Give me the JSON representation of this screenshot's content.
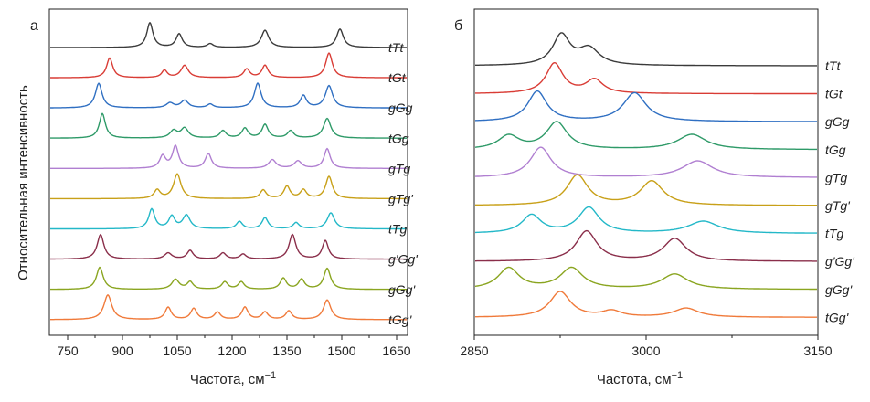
{
  "figure": {
    "ylabel": "Относительная интенсивность"
  },
  "chart_data": [
    {
      "type": "line",
      "panel": "а",
      "xlabel": "Частота, см",
      "xlabel_sup": "−1",
      "xlim": [
        700,
        1680
      ],
      "xticks": [
        750,
        900,
        1050,
        1200,
        1350,
        1500,
        1650
      ],
      "yticks": false,
      "series": [
        {
          "name": "tTt",
          "color": "#3a3a3a",
          "peaks": [
            [
              975,
              1.0,
              10
            ],
            [
              1055,
              0.55,
              10
            ],
            [
              1140,
              0.15,
              10
            ],
            [
              1290,
              0.7,
              12
            ],
            [
              1495,
              0.75,
              11
            ]
          ]
        },
        {
          "name": "tGt",
          "color": "#d93c35",
          "peaks": [
            [
              865,
              0.8,
              10
            ],
            [
              1015,
              0.3,
              9
            ],
            [
              1070,
              0.5,
              12
            ],
            [
              1240,
              0.35,
              10
            ],
            [
              1290,
              0.5,
              10
            ],
            [
              1465,
              1.0,
              11
            ]
          ]
        },
        {
          "name": "gGg",
          "color": "#2f6fc2",
          "peaks": [
            [
              835,
              1.0,
              11
            ],
            [
              1030,
              0.2,
              12
            ],
            [
              1070,
              0.3,
              12
            ],
            [
              1140,
              0.15,
              10
            ],
            [
              1270,
              1.0,
              11
            ],
            [
              1395,
              0.5,
              10
            ],
            [
              1465,
              0.9,
              12
            ]
          ]
        },
        {
          "name": "tGg",
          "color": "#2e9a68",
          "peaks": [
            [
              845,
              1.0,
              10
            ],
            [
              1040,
              0.3,
              12
            ],
            [
              1070,
              0.4,
              12
            ],
            [
              1175,
              0.3,
              10
            ],
            [
              1235,
              0.4,
              10
            ],
            [
              1290,
              0.55,
              10
            ],
            [
              1360,
              0.3,
              10
            ],
            [
              1460,
              0.8,
              12
            ]
          ]
        },
        {
          "name": "gTg",
          "color": "#b07fd1",
          "peaks": [
            [
              1010,
              0.5,
              10
            ],
            [
              1045,
              0.9,
              10
            ],
            [
              1135,
              0.6,
              10
            ],
            [
              1310,
              0.35,
              12
            ],
            [
              1380,
              0.3,
              12
            ],
            [
              1460,
              0.8,
              10
            ]
          ]
        },
        {
          "name": "gTg'",
          "color": "#c8a018",
          "peaks": [
            [
              995,
              0.35,
              10
            ],
            [
              1050,
              1.0,
              12
            ],
            [
              1285,
              0.35,
              10
            ],
            [
              1350,
              0.5,
              10
            ],
            [
              1395,
              0.35,
              10
            ],
            [
              1465,
              0.9,
              11
            ]
          ]
        },
        {
          "name": "tTg",
          "color": "#23b8c8",
          "peaks": [
            [
              980,
              0.8,
              10
            ],
            [
              1035,
              0.5,
              10
            ],
            [
              1075,
              0.55,
              12
            ],
            [
              1220,
              0.3,
              10
            ],
            [
              1290,
              0.45,
              10
            ],
            [
              1375,
              0.25,
              10
            ],
            [
              1470,
              0.65,
              12
            ]
          ]
        },
        {
          "name": "g'Gg'",
          "color": "#8a2e4a",
          "peaks": [
            [
              840,
              1.0,
              11
            ],
            [
              1025,
              0.25,
              12
            ],
            [
              1085,
              0.35,
              10
            ],
            [
              1175,
              0.25,
              10
            ],
            [
              1230,
              0.2,
              10
            ],
            [
              1365,
              1.0,
              11
            ],
            [
              1455,
              0.75,
              10
            ]
          ]
        },
        {
          "name": "gGg'",
          "color": "#8aa520",
          "peaks": [
            [
              838,
              0.9,
              11
            ],
            [
              1045,
              0.4,
              12
            ],
            [
              1085,
              0.3,
              10
            ],
            [
              1180,
              0.3,
              10
            ],
            [
              1225,
              0.3,
              10
            ],
            [
              1340,
              0.45,
              10
            ],
            [
              1390,
              0.4,
              10
            ],
            [
              1460,
              0.85,
              11
            ]
          ]
        },
        {
          "name": "tGg'",
          "color": "#f07a3a",
          "peaks": [
            [
              860,
              1.0,
              13
            ],
            [
              1025,
              0.5,
              10
            ],
            [
              1095,
              0.45,
              10
            ],
            [
              1160,
              0.3,
              10
            ],
            [
              1235,
              0.5,
              10
            ],
            [
              1290,
              0.3,
              10
            ],
            [
              1355,
              0.35,
              10
            ],
            [
              1460,
              0.8,
              12
            ]
          ]
        }
      ]
    },
    {
      "type": "line",
      "panel": "б",
      "xlabel": "Частота, см",
      "xlabel_sup": "−1",
      "xlim": [
        2850,
        3150
      ],
      "xticks": [
        2850,
        3000,
        3150
      ],
      "yticks": false,
      "series": [
        {
          "name": "tTt",
          "color": "#3a3a3a",
          "peaks": [
            [
              2926,
              1.0,
              9
            ],
            [
              2950,
              0.55,
              11
            ]
          ]
        },
        {
          "name": "tGt",
          "color": "#d93c35",
          "peaks": [
            [
              2920,
              1.0,
              9
            ],
            [
              2955,
              0.45,
              9
            ]
          ]
        },
        {
          "name": "gGg",
          "color": "#2f6fc2",
          "peaks": [
            [
              2905,
              1.0,
              10
            ],
            [
              2990,
              0.95,
              12
            ]
          ]
        },
        {
          "name": "tGg",
          "color": "#2e9a68",
          "peaks": [
            [
              2880,
              0.45,
              11
            ],
            [
              2922,
              0.9,
              11
            ],
            [
              3040,
              0.5,
              15
            ]
          ]
        },
        {
          "name": "gTg",
          "color": "#b07fd1",
          "peaks": [
            [
              2908,
              1.0,
              11
            ],
            [
              3045,
              0.55,
              16
            ]
          ]
        },
        {
          "name": "gTg'",
          "color": "#c8a018",
          "peaks": [
            [
              2940,
              1.0,
              11
            ],
            [
              3005,
              0.8,
              12
            ]
          ]
        },
        {
          "name": "tTg",
          "color": "#23b8c8",
          "peaks": [
            [
              2900,
              0.6,
              10
            ],
            [
              2950,
              0.85,
              11
            ],
            [
              3050,
              0.4,
              16
            ]
          ]
        },
        {
          "name": "g'Gg'",
          "color": "#8a2e4a",
          "peaks": [
            [
              2948,
              1.0,
              11
            ],
            [
              3025,
              0.75,
              12
            ]
          ]
        },
        {
          "name": "gGg'",
          "color": "#8aa520",
          "peaks": [
            [
              2880,
              0.7,
              11
            ],
            [
              2935,
              0.7,
              12
            ],
            [
              3025,
              0.5,
              14
            ]
          ]
        },
        {
          "name": "tGg'",
          "color": "#f07a3a",
          "peaks": [
            [
              2925,
              0.85,
              11
            ],
            [
              2970,
              0.2,
              10
            ],
            [
              3035,
              0.3,
              13
            ]
          ]
        }
      ]
    }
  ]
}
